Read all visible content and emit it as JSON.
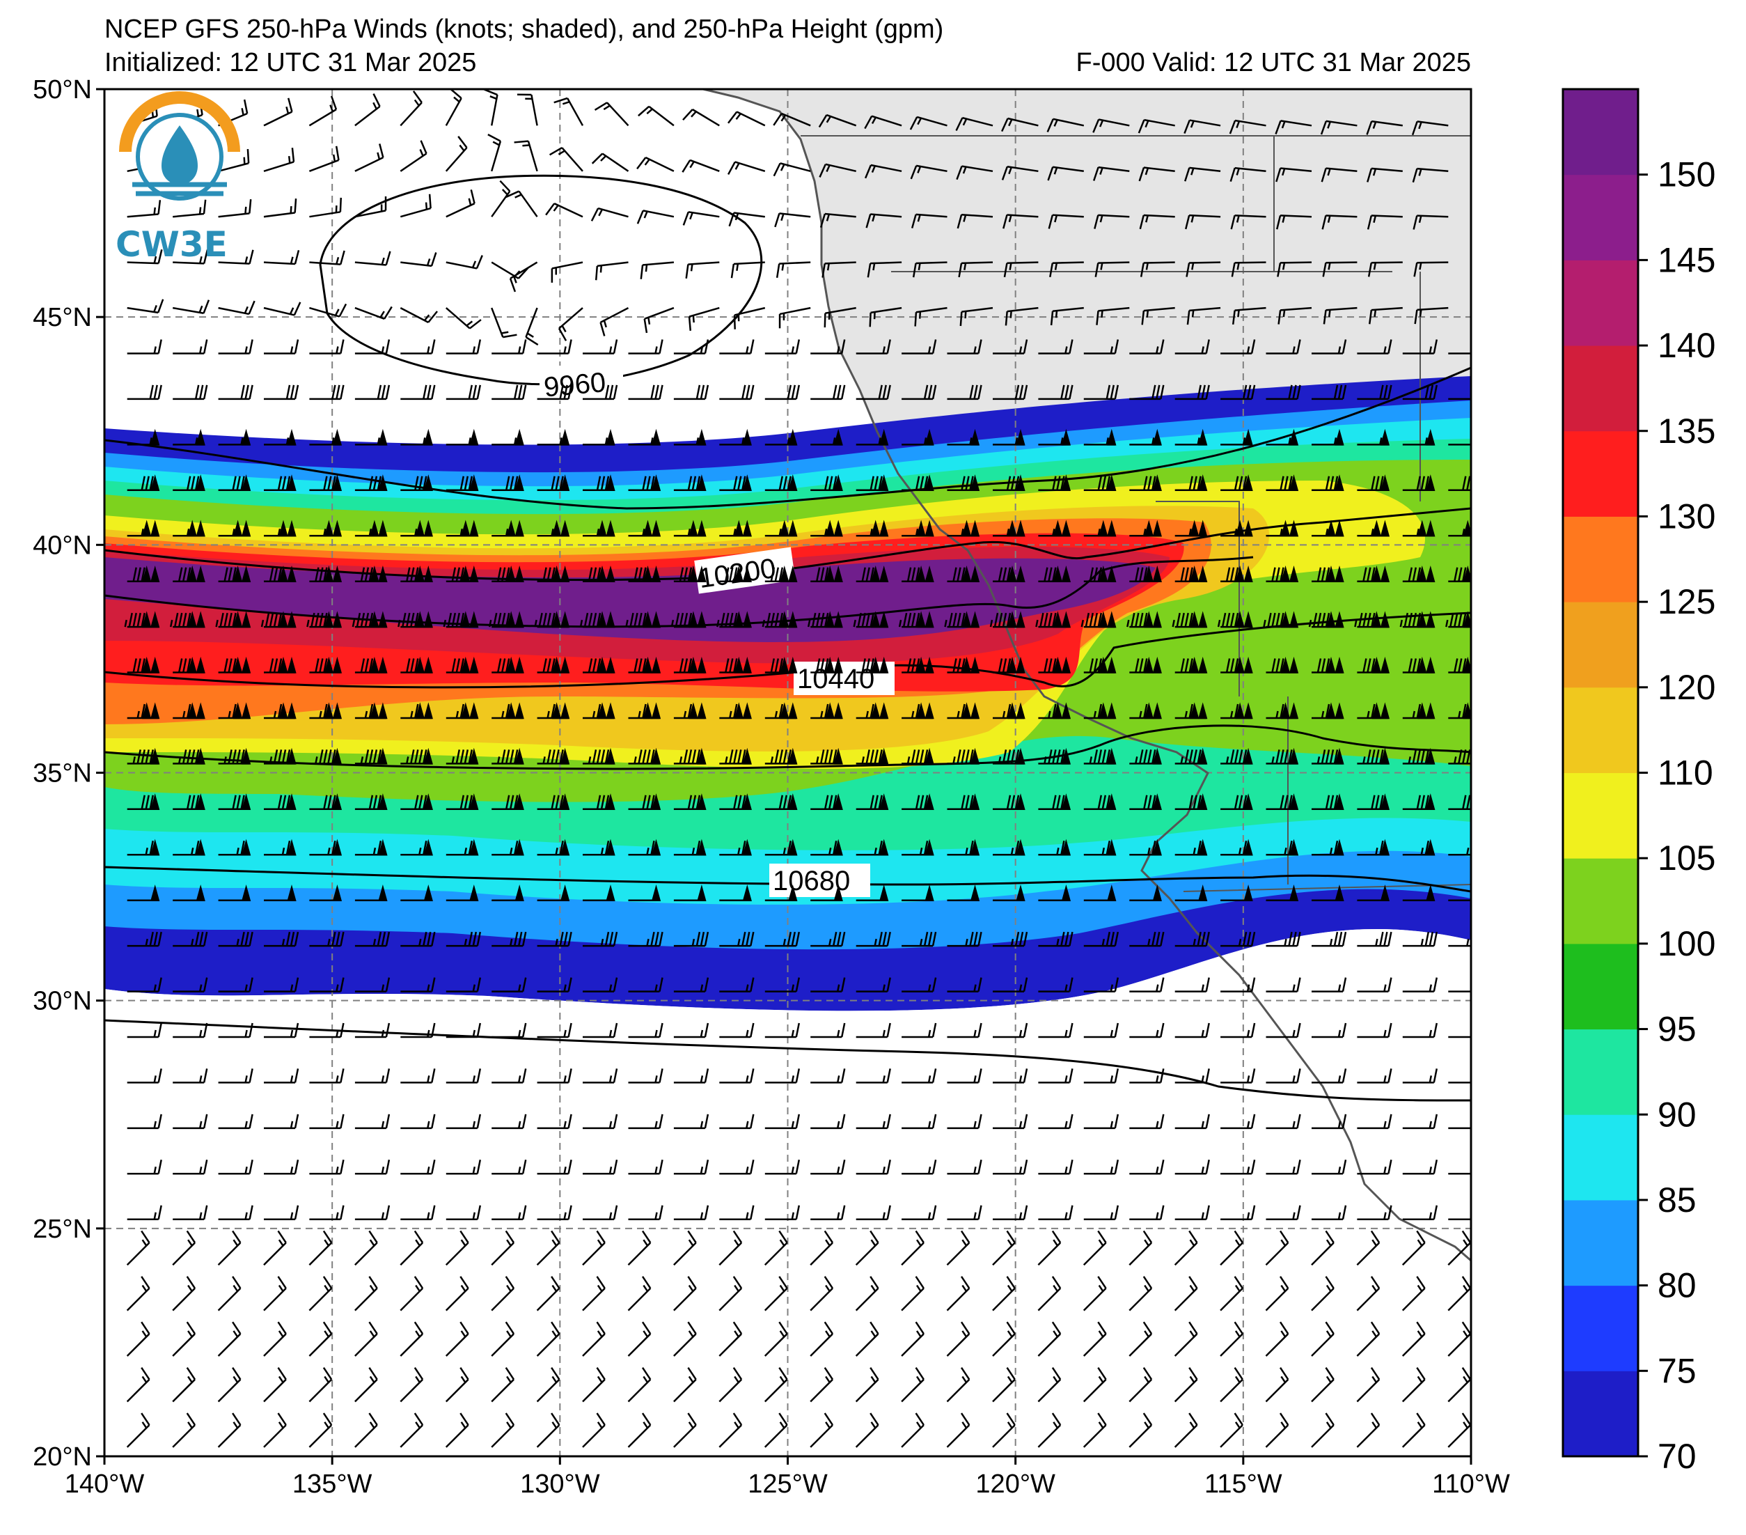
{
  "title": {
    "line1": "NCEP GFS 250-hPa Winds (knots; shaded), and 250-hPa Height (gpm)",
    "initialized": "Initialized: 12 UTC 31 Mar 2025",
    "valid": "F-000  Valid: 12 UTC 31 Mar 2025"
  },
  "logo": {
    "text": "CW3E"
  },
  "map": {
    "region": {
      "lon_min": -140,
      "lon_max": -110,
      "lat_min": 20,
      "lat_max": 50
    },
    "lat_ticks": [
      {
        "value": 50,
        "label": "50°N"
      },
      {
        "value": 45,
        "label": "45°N"
      },
      {
        "value": 40,
        "label": "40°N"
      },
      {
        "value": 35,
        "label": "35°N"
      },
      {
        "value": 30,
        "label": "30°N"
      },
      {
        "value": 25,
        "label": "25°N"
      },
      {
        "value": 20,
        "label": "20°N"
      }
    ],
    "lon_ticks": [
      {
        "value": -140,
        "label": "140°W"
      },
      {
        "value": -135,
        "label": "135°W"
      },
      {
        "value": -130,
        "label": "130°W"
      },
      {
        "value": -125,
        "label": "125°W"
      },
      {
        "value": -120,
        "label": "120°W"
      },
      {
        "value": -115,
        "label": "115°W"
      },
      {
        "value": -110,
        "label": "110°W"
      }
    ],
    "grid": true,
    "land_color": "#e5e5e5",
    "height_contours": [
      {
        "value": 9960,
        "label": "9960"
      },
      {
        "value": 10200,
        "label": "10200"
      },
      {
        "value": 10440,
        "label": "10440"
      },
      {
        "value": 10680,
        "label": "10680"
      }
    ]
  },
  "colorbar": {
    "levels": [
      {
        "label": "70",
        "value": 70
      },
      {
        "label": "75",
        "value": 75
      },
      {
        "label": "80",
        "value": 80
      },
      {
        "label": "85",
        "value": 85
      },
      {
        "label": "90",
        "value": 90
      },
      {
        "label": "95",
        "value": 95
      },
      {
        "label": "100",
        "value": 100
      },
      {
        "label": "105",
        "value": 105
      },
      {
        "label": "110",
        "value": 110
      },
      {
        "label": "120",
        "value": 120
      },
      {
        "label": "125",
        "value": 125
      },
      {
        "label": "130",
        "value": 130
      },
      {
        "label": "135",
        "value": 135
      },
      {
        "label": "140",
        "value": 140
      },
      {
        "label": "145",
        "value": 145
      },
      {
        "label": "150",
        "value": 150
      }
    ],
    "colors": [
      "#1e1ec8",
      "#1e3cff",
      "#1e9bff",
      "#1ee6f0",
      "#1ee6a0",
      "#1ebe1e",
      "#7dd21e",
      "#f0f01e",
      "#f0c81e",
      "#f0a01e",
      "#ff781e",
      "#ff1e1e",
      "#d21e3c",
      "#b41e6e",
      "#8c1e8c",
      "#701e8c"
    ]
  }
}
